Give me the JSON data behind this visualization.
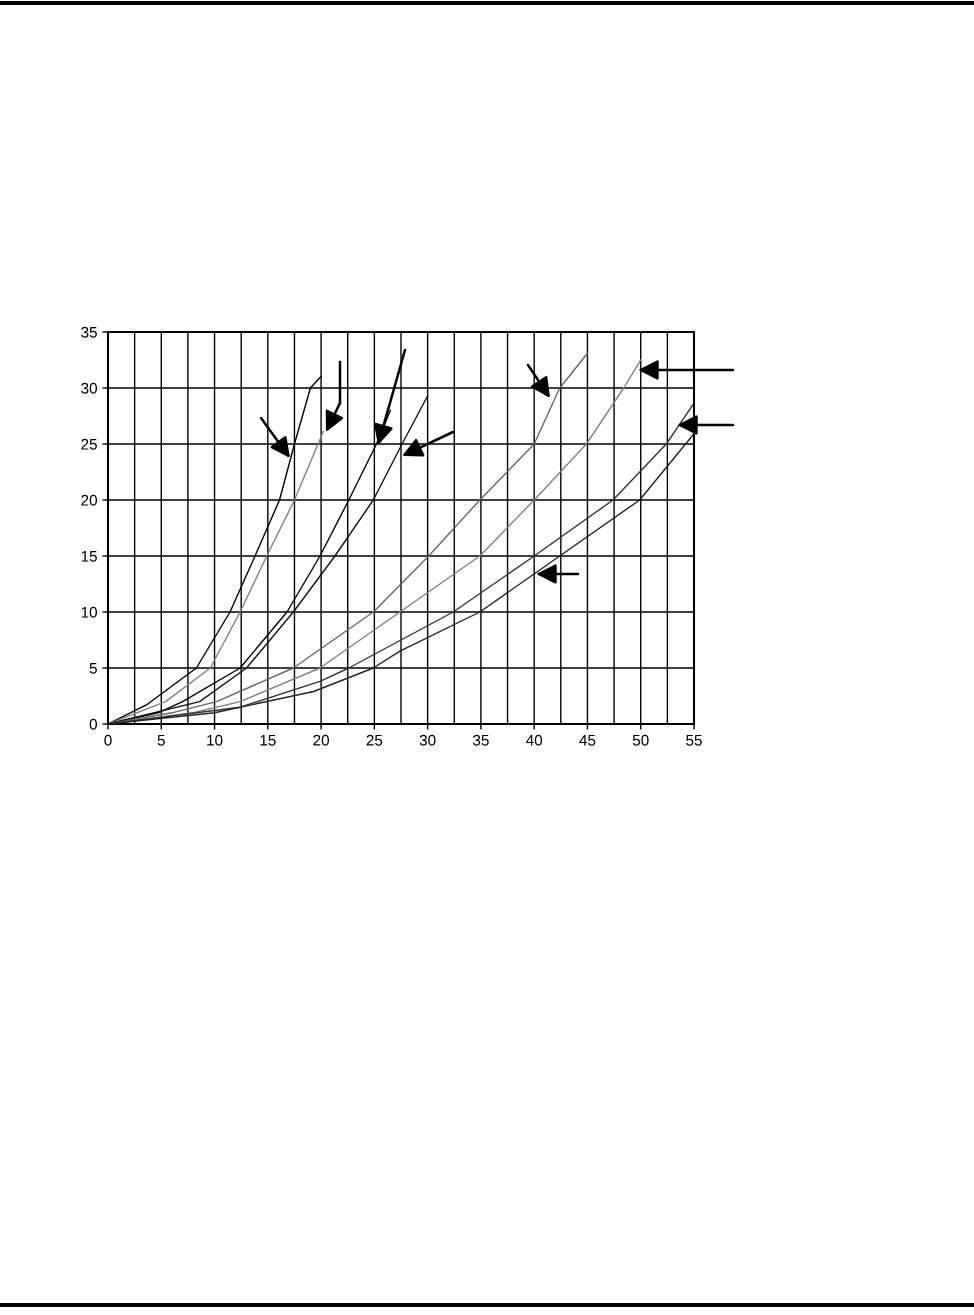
{
  "chart_data": {
    "type": "line",
    "xlim": [
      0,
      55
    ],
    "ylim": [
      0,
      35
    ],
    "xticks": [
      0,
      {
        "value": 2.5,
        "label": null
      },
      5,
      {
        "value": 7.5,
        "label": null
      },
      10,
      {
        "value": 12.5,
        "label": null
      },
      15,
      {
        "value": 17.5,
        "label": null
      },
      20,
      {
        "value": 22.5,
        "label": null
      },
      25,
      {
        "value": 27.5,
        "label": null
      },
      30,
      {
        "value": 32.5,
        "label": null
      },
      35,
      {
        "value": 37.5,
        "label": null
      },
      40,
      {
        "value": 42.5,
        "label": null
      },
      45,
      {
        "value": 47.5,
        "label": null
      },
      50,
      {
        "value": 52.5,
        "label": null
      },
      55
    ],
    "yticks": [
      0,
      5,
      10,
      15,
      20,
      25,
      30,
      35
    ],
    "grid": true,
    "marker": "none",
    "line_style": "solid",
    "series": [
      {
        "color": "#000000",
        "x": [
          0,
          3.6,
          8.3,
          11.45,
          13.8,
          16.1,
          17.5,
          19.0,
          19.96
        ],
        "values": [
          0,
          1.7,
          5,
          10,
          15,
          20,
          25,
          30,
          31.0
        ]
      },
      {
        "color": "#808080",
        "x": [
          0,
          5.4,
          9.6,
          12.4,
          14.9,
          17.5,
          20.2
        ],
        "values": [
          0,
          2,
          5,
          10,
          15,
          20,
          26.1
        ]
      },
      {
        "color": "#000000",
        "x": [
          0,
          4.7,
          7.0,
          12.4,
          16.8,
          19.9,
          22.6,
          25.2,
          26.5
        ],
        "values": [
          0,
          1,
          2,
          5,
          10,
          15,
          20,
          25,
          28
        ]
      },
      {
        "color": "#111111",
        "x": [
          0,
          8.6,
          13.0,
          17.4,
          21.3,
          24.9,
          27.6,
          30.0
        ],
        "values": [
          0,
          2,
          5,
          10,
          15,
          20,
          25,
          29.3
        ]
      },
      {
        "color": "#666666",
        "x": [
          0,
          6,
          10.2,
          17.4,
          24.9,
          30.1,
          34.9,
          40.0,
          42.4,
          45.0
        ],
        "values": [
          0,
          1,
          2,
          5,
          10,
          15,
          20,
          25,
          30,
          33.1
        ]
      },
      {
        "color": "#808080",
        "x": [
          0,
          8,
          12.4,
          19.9,
          27.4,
          34.9,
          40.0,
          44.9,
          48.4,
          50.0
        ],
        "values": [
          0,
          1,
          2,
          5,
          10,
          15,
          20,
          25,
          30,
          32.5
        ]
      },
      {
        "color": "#333333",
        "x": [
          0,
          12.4,
          19.9,
          22.6,
          32.4,
          40.0,
          47.4,
          52.4,
          54.9
        ],
        "values": [
          0,
          1.5,
          3.8,
          5,
          10,
          15,
          20,
          25,
          28.5
        ]
      },
      {
        "color": "#222222",
        "x": [
          0,
          10,
          19.3,
          24.9,
          27.4,
          34.9,
          42.4,
          49.9,
          54.9
        ],
        "values": [
          0,
          1,
          2.9,
          5,
          6.5,
          10,
          15,
          20,
          25.8
        ]
      }
    ]
  }
}
